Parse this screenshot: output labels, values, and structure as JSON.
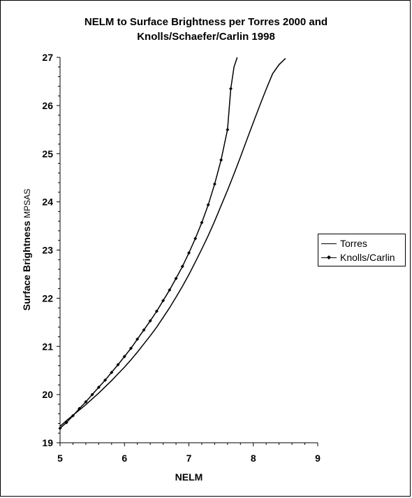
{
  "chart_data": {
    "type": "line",
    "title_line1": "NELM to Surface Brightness per Torres 2000 and",
    "title_line2": "Knolls/Schaefer/Carlin 1998",
    "xlabel": "NELM",
    "ylabel": "Surface Brightness",
    "ylabel_unit": "MPSAS",
    "xlim": [
      5,
      9
    ],
    "ylim": [
      19,
      27
    ],
    "xticks": [
      5,
      6,
      7,
      8,
      9
    ],
    "yticks": [
      19,
      20,
      21,
      22,
      23,
      24,
      25,
      26,
      27
    ],
    "grid": false,
    "legend_position": "right",
    "series": [
      {
        "name": "Torres",
        "markers": false,
        "x": [
          5.0,
          5.1,
          5.2,
          5.3,
          5.4,
          5.5,
          5.6,
          5.7,
          5.8,
          5.9,
          6.0,
          6.1,
          6.2,
          6.3,
          6.4,
          6.5,
          6.6,
          6.7,
          6.8,
          6.9,
          7.0,
          7.1,
          7.2,
          7.3,
          7.4,
          7.5,
          7.6,
          7.7,
          7.8,
          7.9,
          8.0,
          8.1,
          8.2,
          8.3,
          8.4,
          8.5
        ],
        "values": [
          19.34,
          19.46,
          19.57,
          19.68,
          19.79,
          19.91,
          20.03,
          20.16,
          20.29,
          20.43,
          20.57,
          20.72,
          20.88,
          21.05,
          21.22,
          21.4,
          21.6,
          21.8,
          22.02,
          22.25,
          22.49,
          22.75,
          23.02,
          23.3,
          23.6,
          23.92,
          24.24,
          24.58,
          24.93,
          25.29,
          25.65,
          26.0,
          26.34,
          26.66,
          26.85,
          26.98
        ]
      },
      {
        "name": "Knolls/Carlin",
        "markers": true,
        "x": [
          5.0,
          5.1,
          5.2,
          5.3,
          5.4,
          5.5,
          5.6,
          5.7,
          5.8,
          5.9,
          6.0,
          6.1,
          6.2,
          6.3,
          6.4,
          6.5,
          6.6,
          6.7,
          6.8,
          6.9,
          7.0,
          7.1,
          7.2,
          7.3,
          7.4,
          7.5,
          7.6,
          7.65,
          7.7,
          7.75
        ],
        "values": [
          19.3,
          19.42,
          19.56,
          19.71,
          19.85,
          20.0,
          20.15,
          20.3,
          20.46,
          20.62,
          20.79,
          20.96,
          21.15,
          21.34,
          21.53,
          21.73,
          21.95,
          22.17,
          22.41,
          22.66,
          22.94,
          23.24,
          23.57,
          23.94,
          24.37,
          24.87,
          25.5,
          26.35,
          26.8,
          27.0
        ]
      }
    ]
  }
}
